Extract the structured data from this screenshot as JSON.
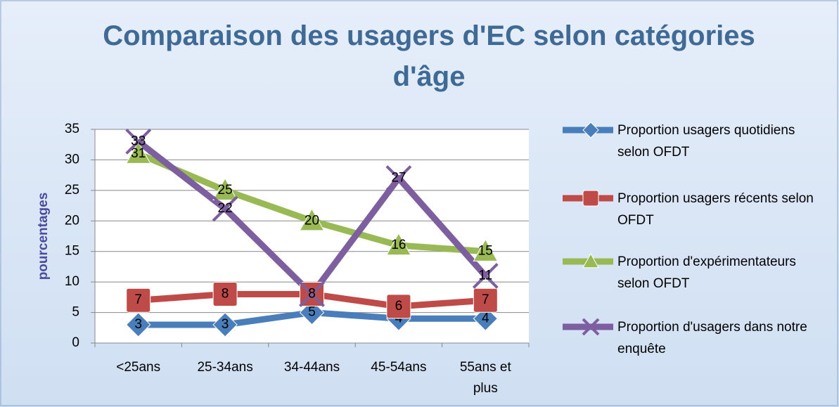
{
  "chart_data": {
    "type": "line",
    "title": "Comparaison des usagers d'EC selon catégories d'âge",
    "y_label": "pourcentages",
    "categories": [
      "<25ans",
      "25-34ans",
      "34-44ans",
      "45-54ans",
      "55ans et plus"
    ],
    "series": [
      {
        "name": "Proportion usagers quotidiens selon OFDT",
        "color": "#4a7ebb",
        "marker": "diamond",
        "values": [
          3,
          3,
          5,
          4,
          4
        ]
      },
      {
        "name": "Proportion usagers récents selon OFDT",
        "color": "#be4b48",
        "marker": "square",
        "values": [
          7,
          8,
          8,
          6,
          7
        ]
      },
      {
        "name": "Proportion d'expérimentateurs selon OFDT",
        "color": "#98b954",
        "marker": "triangle",
        "values": [
          31,
          25,
          20,
          16,
          15
        ]
      },
      {
        "name": "Proportion d'usagers dans notre enquête",
        "color": "#7d5fa0",
        "marker": "x",
        "values": [
          33,
          22,
          8,
          27,
          11
        ]
      }
    ],
    "ylim": [
      0,
      35
    ],
    "yticks": [
      0,
      5,
      10,
      15,
      20,
      25,
      30,
      35
    ],
    "grid": true,
    "legend": "right"
  }
}
